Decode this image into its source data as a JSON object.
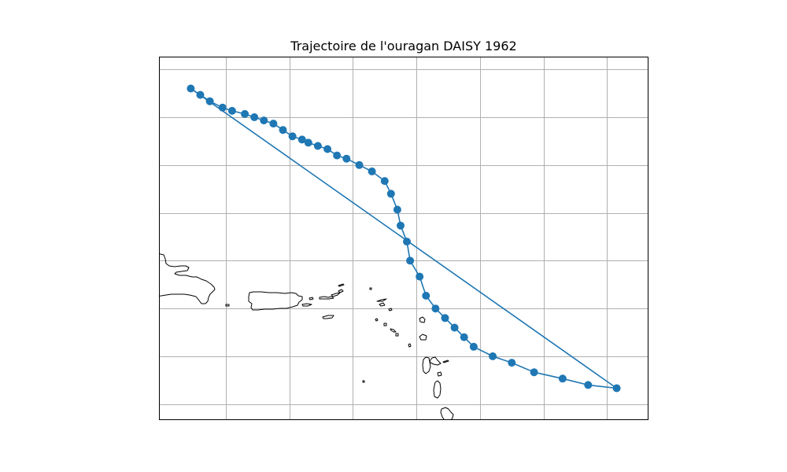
{
  "chart_data": {
    "type": "line",
    "title": "Trajectoire de l'ouragan DAISY 1962",
    "xlabel": "",
    "ylabel": "",
    "xlim": [
      -70.1,
      -54.7
    ],
    "ylim": [
      14.5,
      25.9
    ],
    "grid": true,
    "grid_x": [
      -68,
      -66,
      -64,
      -62,
      -60,
      -58,
      -56
    ],
    "grid_y": [
      15,
      16.5,
      18,
      19.5,
      21,
      22.5,
      24,
      25.5
    ],
    "coastlines": true,
    "series": [
      {
        "x": [
          -69.1,
          -68.8,
          -68.5,
          -68.1,
          -67.8,
          -67.4,
          -67.1,
          -66.8,
          -66.5,
          -66.2,
          -65.9,
          -65.6,
          -65.4,
          -65.1,
          -64.8,
          -64.5,
          -64.2,
          -63.8,
          -63.4,
          -63.0,
          -62.8,
          -62.6,
          -62.5,
          -62.3,
          -62.2,
          -61.9,
          -61.7,
          -61.4,
          -61.1,
          -60.8,
          -60.5,
          -60.2,
          -59.6,
          -59.0,
          -58.3,
          -57.4,
          -56.6,
          -55.7
        ],
        "y": [
          24.9,
          24.7,
          24.5,
          24.3,
          24.2,
          24.1,
          24.0,
          23.9,
          23.8,
          23.6,
          23.4,
          23.3,
          23.2,
          23.1,
          23.0,
          22.8,
          22.7,
          22.5,
          22.3,
          22.0,
          21.6,
          21.1,
          20.6,
          20.1,
          19.5,
          19.0,
          18.4,
          18.0,
          17.7,
          17.4,
          17.1,
          16.8,
          16.5,
          16.3,
          16.0,
          15.8,
          15.6,
          15.5
        ]
      }
    ],
    "colors": {
      "track": "#1f77b4",
      "grid": "#b0b0b0",
      "coastline": "#000000",
      "background": "#ffffff"
    }
  }
}
